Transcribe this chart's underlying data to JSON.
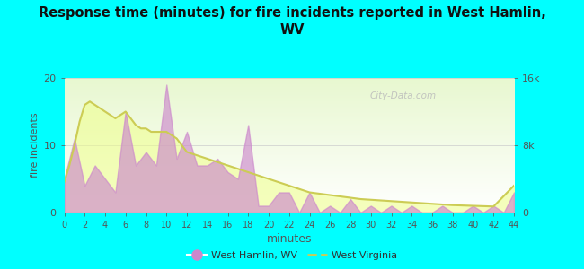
{
  "title": "Response time (minutes) for fire incidents reported in West Hamlin,\nWV",
  "xlabel": "minutes",
  "ylabel_left": "fire incidents",
  "ylabel_right_ticks": [
    "0",
    "8k",
    "16k"
  ],
  "bg_outer": "#00FFFF",
  "title_color": "#111111",
  "axis_label_color": "#555555",
  "tick_color": "#555555",
  "left_yticks": [
    0,
    10,
    20
  ],
  "xlim": [
    0,
    44
  ],
  "ylim_left": [
    0,
    20
  ],
  "grid_color": "#cccccc",
  "wv_area_color": "#cc88cc",
  "wv_area_alpha": 0.65,
  "state_line_color": "#cccc55",
  "state_fill_color": "#eeff88",
  "state_fill_alpha": 0.55,
  "watermark": "City-Data.com",
  "legend_dot_color": "#cc88cc",
  "legend_line_color": "#cccc55",
  "plot_bg_top": "#e8f8d0",
  "plot_bg_bottom": "#ffffff",
  "wv_x": [
    0,
    1,
    2,
    3,
    4,
    5,
    6,
    7,
    8,
    9,
    10,
    11,
    12,
    13,
    14,
    15,
    16,
    17,
    18,
    19,
    20,
    21,
    22,
    23,
    24,
    25,
    26,
    27,
    28,
    29,
    30,
    31,
    32,
    33,
    34,
    35,
    36,
    37,
    38,
    39,
    40,
    41,
    42,
    43,
    44
  ],
  "wv_y": [
    5,
    11,
    4,
    7,
    5,
    3,
    15,
    7,
    9,
    7,
    19,
    8,
    12,
    7,
    7,
    8,
    6,
    5,
    13,
    1,
    1,
    3,
    3,
    0,
    3,
    0,
    1,
    0,
    2,
    0,
    1,
    0,
    1,
    0,
    1,
    0,
    0,
    1,
    0,
    0,
    1,
    0,
    1,
    0,
    3
  ],
  "state_x": [
    0,
    0.5,
    1,
    1.5,
    2,
    2.5,
    3,
    3.5,
    4,
    4.5,
    5,
    5.5,
    6,
    6.5,
    7,
    7.5,
    8,
    8.5,
    9,
    9.5,
    10,
    11,
    12,
    13,
    14,
    15,
    16,
    17,
    18,
    19,
    20,
    21,
    22,
    23,
    24,
    25,
    26,
    27,
    28,
    29,
    30,
    32,
    34,
    36,
    38,
    40,
    42,
    44
  ],
  "state_y": [
    4.5,
    7.0,
    10.0,
    13.5,
    16.0,
    16.5,
    16.0,
    15.5,
    15.0,
    14.5,
    14.0,
    14.5,
    15.0,
    14.0,
    13.0,
    12.5,
    12.5,
    12.0,
    12.0,
    12.0,
    12.0,
    11.0,
    9.0,
    8.5,
    8.0,
    7.5,
    7.0,
    6.5,
    6.0,
    5.5,
    5.0,
    4.5,
    4.0,
    3.5,
    3.0,
    2.8,
    2.6,
    2.4,
    2.2,
    2.0,
    1.9,
    1.7,
    1.5,
    1.3,
    1.1,
    1.0,
    0.9,
    4.0
  ]
}
